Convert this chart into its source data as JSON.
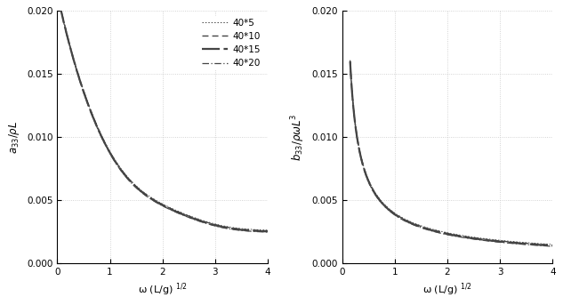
{
  "xlabel": "ω (L/g) $^{1/2}$",
  "xlim": [
    0,
    4
  ],
  "left_ylim": [
    0,
    0.02
  ],
  "right_ylim": [
    0,
    0.02
  ],
  "xticks": [
    0,
    1,
    2,
    3,
    4
  ],
  "yticks": [
    0,
    0.005,
    0.01,
    0.015,
    0.02
  ],
  "legend_labels": [
    "40*5",
    "40*10",
    "40*15",
    "40*20"
  ],
  "grid_color": "#c8c8c8",
  "grid_linestyle": ":",
  "line_color": "#444444",
  "background": "#ffffff",
  "figsize": [
    6.33,
    3.43
  ],
  "dpi": 100
}
